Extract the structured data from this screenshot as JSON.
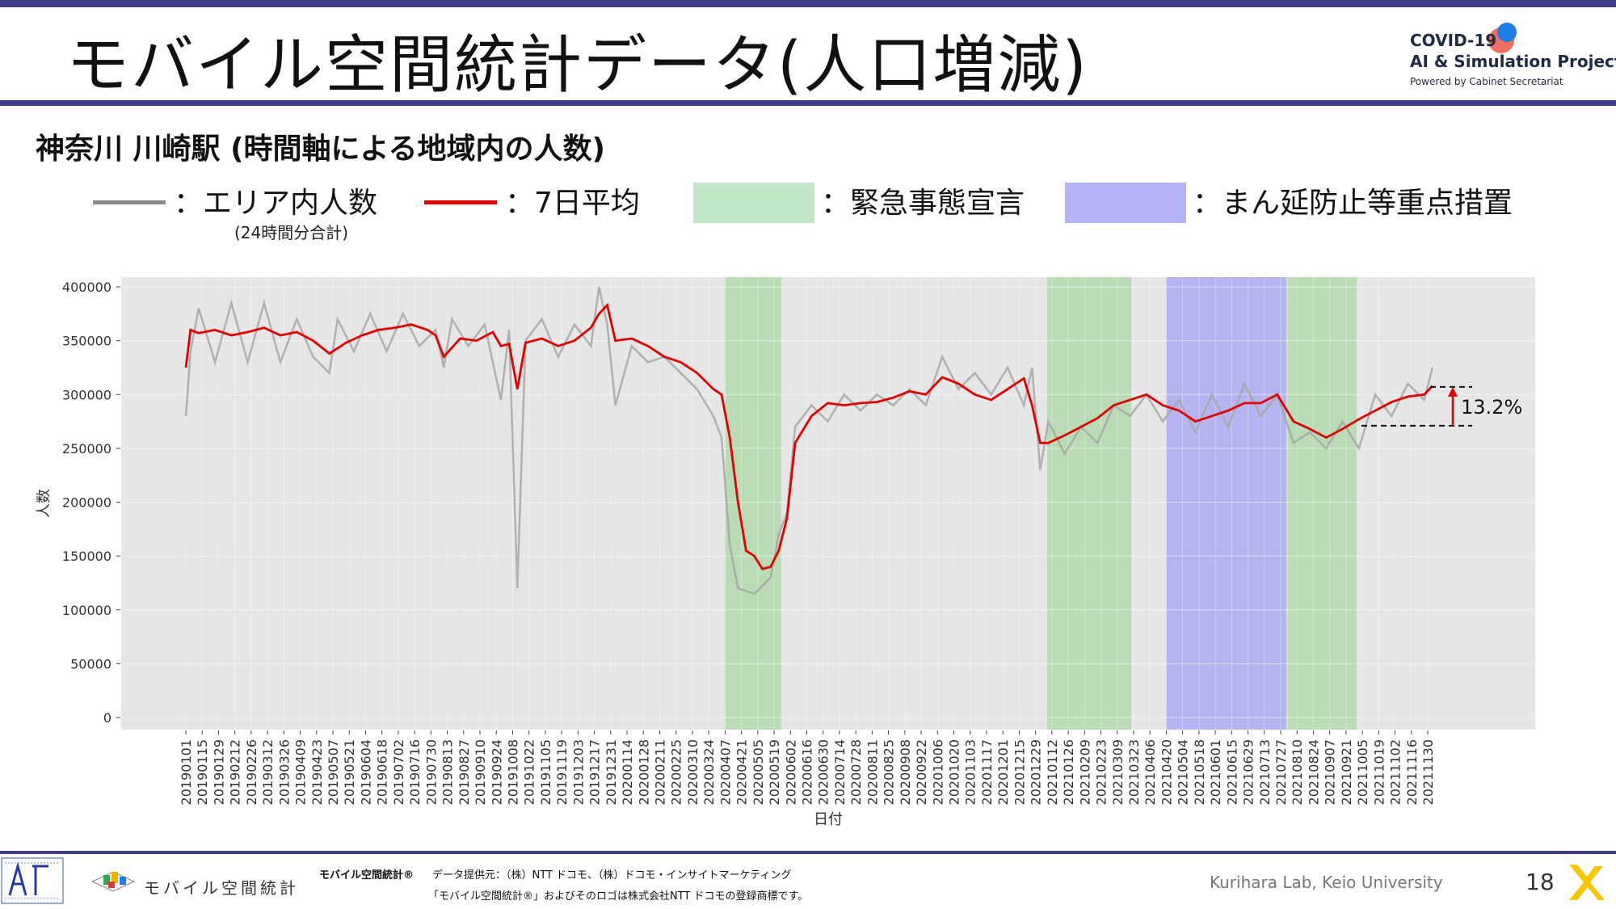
{
  "header": {
    "title": "モバイル空間統計データ(人口増減)",
    "logo_line1": "COVID-19",
    "logo_line2": "AI & Simulation Project",
    "logo_line3": "Powered by Cabinet Secretariat"
  },
  "subtitle": "神奈川 川崎駅 (時間軸による地域内の人数)",
  "legend": {
    "area_population": "：エリア内人数",
    "area_population_note": "(24時間分合計)",
    "seven_day_avg": "：7日平均",
    "emergency": "：緊急事態宣言",
    "priority_measures": "：まん延防止等重点措置"
  },
  "colors": {
    "raw_line": "#a6a6a6",
    "avg_line": "#e00000",
    "emergency": "#a9d8a4",
    "priority": "#a8a8f2",
    "plot_bg": "#e6e6e6",
    "accent": "#3b3d8a"
  },
  "chart_data": {
    "type": "line",
    "title": "",
    "xlabel": "日付",
    "ylabel": "人数",
    "ylim": [
      0,
      420000
    ],
    "yticks": [
      0,
      50000,
      100000,
      150000,
      200000,
      250000,
      300000,
      350000,
      400000
    ],
    "x_ticks": [
      "20190101",
      "20190115",
      "20190129",
      "20190212",
      "20190226",
      "20190312",
      "20190326",
      "20190409",
      "20190423",
      "20190507",
      "20190521",
      "20190604",
      "20190618",
      "20190702",
      "20190716",
      "20190730",
      "20190813",
      "20190827",
      "20190910",
      "20190924",
      "20191008",
      "20191022",
      "20191105",
      "20191119",
      "20191203",
      "20191217",
      "20191231",
      "20200114",
      "20200128",
      "20200211",
      "20200225",
      "20200310",
      "20200324",
      "20200407",
      "20200421",
      "20200505",
      "20200519",
      "20200602",
      "20200616",
      "20200630",
      "20200714",
      "20200728",
      "20200811",
      "20200825",
      "20200908",
      "20200922",
      "20201006",
      "20201020",
      "20201103",
      "20201117",
      "20201201",
      "20201215",
      "20201229",
      "20210112",
      "20210126",
      "20210209",
      "20210223",
      "20210309",
      "20210323",
      "20210406",
      "20210420",
      "20210504",
      "20210518",
      "20210601",
      "20210615",
      "20210629",
      "20210713",
      "20210727",
      "20210810",
      "20210824",
      "20210907",
      "20210921",
      "20211005",
      "20211019",
      "20211102",
      "20211116",
      "20211130"
    ],
    "bands": [
      {
        "type": "emergency",
        "start": "20200407",
        "end": "20200525"
      },
      {
        "type": "emergency",
        "start": "20210108",
        "end": "20210321"
      },
      {
        "type": "priority",
        "start": "20210420",
        "end": "20210801"
      },
      {
        "type": "emergency",
        "start": "20210802",
        "end": "20210930"
      }
    ],
    "series": [
      {
        "name": "エリア内人数",
        "x": [
          "20190101",
          "20190105",
          "20190112",
          "20190126",
          "20190209",
          "20190223",
          "20190309",
          "20190323",
          "20190406",
          "20190420",
          "20190504",
          "20190511",
          "20190525",
          "20190608",
          "20190622",
          "20190706",
          "20190720",
          "20190803",
          "20190810",
          "20190817",
          "20190831",
          "20190914",
          "20190928",
          "20191005",
          "20191012",
          "20191019",
          "20191102",
          "20191116",
          "20191130",
          "20191214",
          "20191221",
          "20191228",
          "20200104",
          "20200118",
          "20200201",
          "20200215",
          "20200229",
          "20200314",
          "20200328",
          "20200404",
          "20200411",
          "20200418",
          "20200502",
          "20200516",
          "20200523",
          "20200530",
          "20200606",
          "20200620",
          "20200704",
          "20200718",
          "20200801",
          "20200815",
          "20200829",
          "20200912",
          "20200926",
          "20201010",
          "20201024",
          "20201107",
          "20201121",
          "20201205",
          "20201219",
          "20201226",
          "20210102",
          "20210109",
          "20210123",
          "20210206",
          "20210220",
          "20210306",
          "20210320",
          "20210403",
          "20210417",
          "20210501",
          "20210515",
          "20210529",
          "20210612",
          "20210626",
          "20210710",
          "20210724",
          "20210807",
          "20210821",
          "20210904",
          "20210918",
          "20211002",
          "20211016",
          "20211030",
          "20211113",
          "20211127",
          "20211204"
        ],
        "values": [
          280000,
          340000,
          380000,
          330000,
          385000,
          330000,
          385000,
          330000,
          370000,
          335000,
          320000,
          370000,
          340000,
          375000,
          340000,
          375000,
          345000,
          360000,
          325000,
          370000,
          345000,
          365000,
          295000,
          360000,
          120000,
          350000,
          370000,
          335000,
          365000,
          345000,
          400000,
          365000,
          290000,
          345000,
          330000,
          335000,
          320000,
          305000,
          280000,
          260000,
          160000,
          120000,
          115000,
          130000,
          170000,
          190000,
          270000,
          290000,
          275000,
          300000,
          285000,
          300000,
          290000,
          305000,
          290000,
          335000,
          305000,
          320000,
          300000,
          325000,
          290000,
          325000,
          230000,
          275000,
          245000,
          270000,
          255000,
          290000,
          280000,
          300000,
          275000,
          295000,
          265000,
          300000,
          270000,
          310000,
          280000,
          300000,
          255000,
          265000,
          250000,
          275000,
          250000,
          300000,
          280000,
          310000,
          295000,
          325000
        ]
      },
      {
        "name": "7日平均",
        "x": [
          "20190101",
          "20190105",
          "20190112",
          "20190126",
          "20190209",
          "20190223",
          "20190309",
          "20190323",
          "20190406",
          "20190420",
          "20190504",
          "20190518",
          "20190601",
          "20190615",
          "20190629",
          "20190713",
          "20190727",
          "20190803",
          "20190810",
          "20190824",
          "20190907",
          "20190921",
          "20190928",
          "20191005",
          "20191012",
          "20191019",
          "20191102",
          "20191116",
          "20191130",
          "20191214",
          "20191221",
          "20191228",
          "20200104",
          "20200118",
          "20200201",
          "20200215",
          "20200229",
          "20200314",
          "20200328",
          "20200404",
          "20200411",
          "20200418",
          "20200425",
          "20200502",
          "20200509",
          "20200516",
          "20200523",
          "20200530",
          "20200606",
          "20200620",
          "20200704",
          "20200718",
          "20200801",
          "20200815",
          "20200829",
          "20200912",
          "20200926",
          "20201010",
          "20201024",
          "20201107",
          "20201121",
          "20201205",
          "20201219",
          "20201226",
          "20210102",
          "20210109",
          "20210123",
          "20210206",
          "20210220",
          "20210306",
          "20210320",
          "20210403",
          "20210417",
          "20210501",
          "20210515",
          "20210529",
          "20210612",
          "20210626",
          "20210710",
          "20210724",
          "20210807",
          "20210821",
          "20210904",
          "20210918",
          "20211002",
          "20211016",
          "20211030",
          "20211113",
          "20211127",
          "20211204"
        ],
        "values": [
          325000,
          360000,
          357000,
          360000,
          355000,
          358000,
          362000,
          355000,
          358000,
          350000,
          338000,
          348000,
          355000,
          360000,
          362000,
          365000,
          360000,
          355000,
          335000,
          352000,
          350000,
          358000,
          345000,
          347000,
          305000,
          348000,
          352000,
          345000,
          350000,
          362000,
          375000,
          383000,
          350000,
          352000,
          345000,
          335000,
          330000,
          320000,
          305000,
          300000,
          260000,
          200000,
          155000,
          150000,
          138000,
          140000,
          155000,
          185000,
          255000,
          280000,
          292000,
          290000,
          292000,
          293000,
          297000,
          303000,
          300000,
          316000,
          310000,
          300000,
          295000,
          305000,
          315000,
          290000,
          255000,
          255000,
          262000,
          270000,
          278000,
          290000,
          295000,
          300000,
          290000,
          285000,
          275000,
          280000,
          285000,
          292000,
          292000,
          300000,
          275000,
          268000,
          260000,
          268000,
          277000,
          285000,
          293000,
          298000,
          300000,
          308000
        ]
      }
    ],
    "annotation": {
      "label": "13.2%",
      "from": 271000,
      "to": 307000
    }
  },
  "footer": {
    "mobile_logo_text": "モバイル空間統計",
    "trademark_label": "モバイル空間統計®",
    "provider": "データ提供元：（株）NTT ドコモ、（株）ドコモ・インサイトマーケティング",
    "trademark_note": "「モバイル空間統計®」およびそのロゴは株式会社NTT ドコモの登録商標です。",
    "credit": "Kurihara Lab, Keio University",
    "page": "18"
  }
}
